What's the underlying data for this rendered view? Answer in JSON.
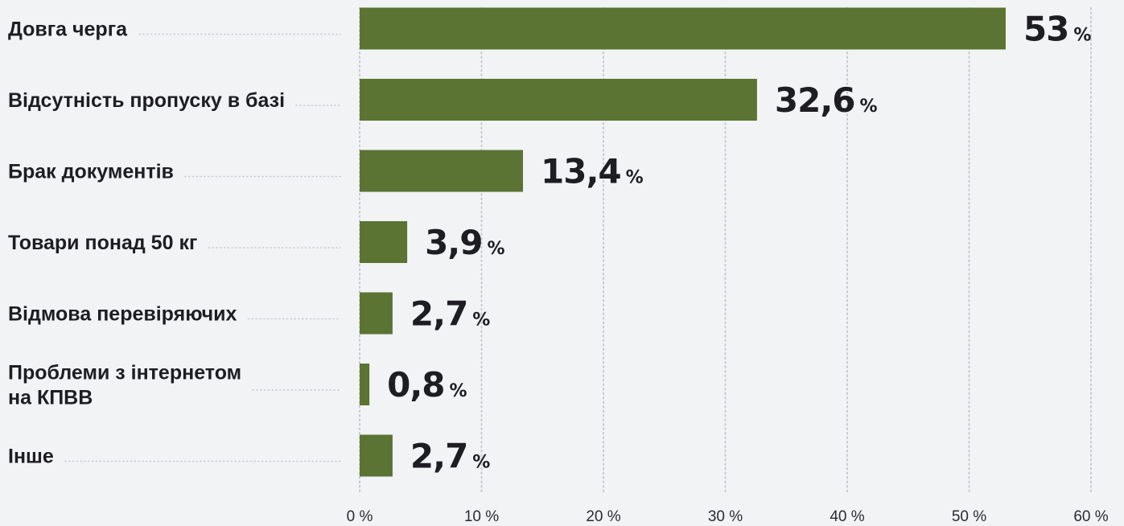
{
  "chart_data": {
    "type": "bar",
    "orientation": "horizontal",
    "categories": [
      [
        "Довга черга"
      ],
      [
        "Відсутність пропуску в базі"
      ],
      [
        "Брак документів"
      ],
      [
        "Товари понад 50 кг"
      ],
      [
        "Відмова перевіряючих"
      ],
      [
        "Проблеми з інтернетом",
        "на КПВВ"
      ],
      [
        "Інше"
      ]
    ],
    "values": [
      53,
      32.6,
      13.4,
      3.9,
      2.7,
      0.8,
      2.7
    ],
    "value_labels": [
      "53",
      "32,6",
      "13,4",
      "3,9",
      "2,7",
      "0,8",
      "2,7"
    ],
    "value_unit": "%",
    "xlim": [
      0,
      60
    ],
    "x_ticks": [
      0,
      10,
      20,
      30,
      40,
      50,
      60
    ],
    "x_tick_labels": [
      "0 %",
      "10 %",
      "20 %",
      "30 %",
      "40 %",
      "50 %",
      "60 %"
    ],
    "grid": "vertical dotted",
    "bar_color": "#5b7333",
    "leader_color": "#c9ccd1",
    "grid_color": "#c6c9ce",
    "text_color": "#1e1e22",
    "background": "#f2f3f5"
  }
}
